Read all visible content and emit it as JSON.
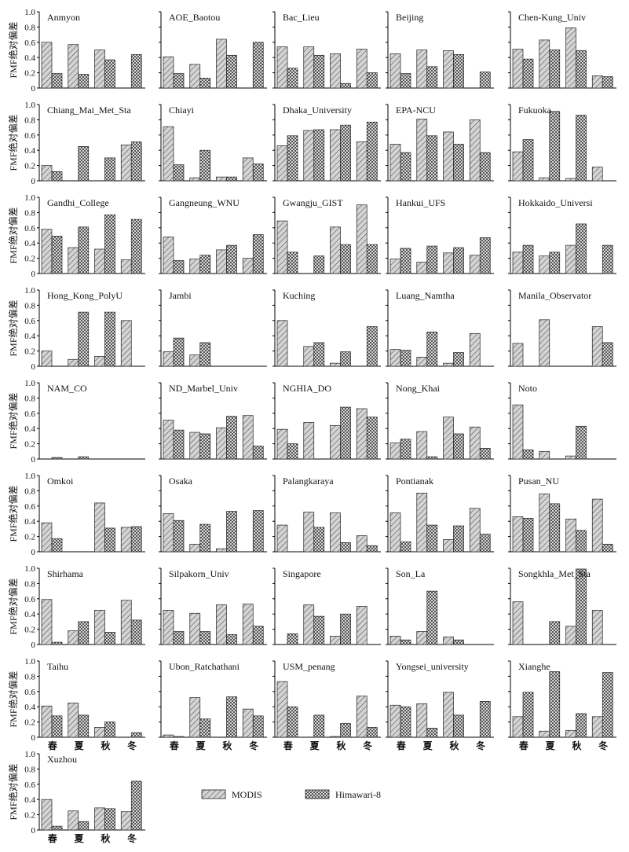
{
  "chart_data": {
    "type": "bar",
    "ylabel": "FMF绝对偏差",
    "categories": [
      "春",
      "夏",
      "秋",
      "冬"
    ],
    "ylim": [
      0,
      1.0
    ],
    "yticks": [
      "0",
      "0.2",
      "0.4",
      "0.6",
      "0.8",
      "1.0"
    ],
    "legend": [
      {
        "name": "MODIS",
        "pattern": "diagonal-lines"
      },
      {
        "name": "Himawari-8",
        "pattern": "crosshatch"
      }
    ],
    "panels": [
      {
        "site": "Anmyon",
        "series": [
          {
            "name": "MODIS",
            "values": [
              0.6,
              0.57,
              0.5,
              0.0
            ]
          },
          {
            "name": "Himawari-8",
            "values": [
              0.19,
              0.18,
              0.37,
              0.44
            ]
          }
        ]
      },
      {
        "site": "AOE_Baotou",
        "series": [
          {
            "name": "MODIS",
            "values": [
              0.41,
              0.31,
              0.64,
              0.0
            ]
          },
          {
            "name": "Himawari-8",
            "values": [
              0.19,
              0.13,
              0.43,
              0.6
            ]
          }
        ]
      },
      {
        "site": "Bac_Lieu",
        "series": [
          {
            "name": "MODIS",
            "values": [
              0.54,
              0.54,
              0.45,
              0.51
            ]
          },
          {
            "name": "Himawari-8",
            "values": [
              0.26,
              0.43,
              0.06,
              0.2
            ]
          }
        ]
      },
      {
        "site": "Beijing",
        "series": [
          {
            "name": "MODIS",
            "values": [
              0.45,
              0.5,
              0.49,
              0.0
            ]
          },
          {
            "name": "Himawari-8",
            "values": [
              0.19,
              0.28,
              0.44,
              0.21
            ]
          }
        ]
      },
      {
        "site": "Chen-Kung_Univ",
        "series": [
          {
            "name": "MODIS",
            "values": [
              0.51,
              0.63,
              0.79,
              0.16
            ]
          },
          {
            "name": "Himawari-8",
            "values": [
              0.38,
              0.5,
              0.49,
              0.15
            ]
          }
        ]
      },
      {
        "site": "Chiang_Mai_Met_Sta",
        "series": [
          {
            "name": "MODIS",
            "values": [
              0.2,
              0.0,
              0.0,
              0.47
            ]
          },
          {
            "name": "Himawari-8",
            "values": [
              0.12,
              0.45,
              0.3,
              0.51
            ]
          }
        ]
      },
      {
        "site": "Chiayi",
        "series": [
          {
            "name": "MODIS",
            "values": [
              0.71,
              0.04,
              0.05,
              0.3
            ]
          },
          {
            "name": "Himawari-8",
            "values": [
              0.21,
              0.4,
              0.05,
              0.22
            ]
          }
        ]
      },
      {
        "site": "Dhaka_University",
        "series": [
          {
            "name": "MODIS",
            "values": [
              0.46,
              0.66,
              0.67,
              0.51
            ]
          },
          {
            "name": "Himawari-8",
            "values": [
              0.59,
              0.67,
              0.73,
              0.77
            ]
          }
        ]
      },
      {
        "site": "EPA-NCU",
        "series": [
          {
            "name": "MODIS",
            "values": [
              0.48,
              0.81,
              0.64,
              0.8
            ]
          },
          {
            "name": "Himawari-8",
            "values": [
              0.37,
              0.59,
              0.48,
              0.37
            ]
          }
        ]
      },
      {
        "site": "Fukuoka",
        "series": [
          {
            "name": "MODIS",
            "values": [
              0.38,
              0.04,
              0.03,
              0.18
            ]
          },
          {
            "name": "Himawari-8",
            "values": [
              0.54,
              0.91,
              0.86,
              0.0
            ]
          }
        ]
      },
      {
        "site": "Gandhi_College",
        "series": [
          {
            "name": "MODIS",
            "values": [
              0.58,
              0.34,
              0.32,
              0.18
            ]
          },
          {
            "name": "Himawari-8",
            "values": [
              0.49,
              0.61,
              0.77,
              0.71
            ]
          }
        ]
      },
      {
        "site": "Gangneung_WNU",
        "series": [
          {
            "name": "MODIS",
            "values": [
              0.48,
              0.19,
              0.31,
              0.2
            ]
          },
          {
            "name": "Himawari-8",
            "values": [
              0.17,
              0.24,
              0.37,
              0.51
            ]
          }
        ]
      },
      {
        "site": "Gwangju_GIST",
        "series": [
          {
            "name": "MODIS",
            "values": [
              0.69,
              0.0,
              0.61,
              0.9
            ]
          },
          {
            "name": "Himawari-8",
            "values": [
              0.28,
              0.23,
              0.38,
              0.38
            ]
          }
        ]
      },
      {
        "site": "Hankui_UFS",
        "series": [
          {
            "name": "MODIS",
            "values": [
              0.19,
              0.15,
              0.27,
              0.24
            ]
          },
          {
            "name": "Himawari-8",
            "values": [
              0.33,
              0.36,
              0.34,
              0.47
            ]
          }
        ]
      },
      {
        "site": "Hokkaido_Universi",
        "series": [
          {
            "name": "MODIS",
            "values": [
              0.28,
              0.23,
              0.37,
              0.0
            ]
          },
          {
            "name": "Himawari-8",
            "values": [
              0.37,
              0.28,
              0.65,
              0.37
            ]
          }
        ]
      },
      {
        "site": "Hong_Kong_PolyU",
        "series": [
          {
            "name": "MODIS",
            "values": [
              0.2,
              0.09,
              0.13,
              0.6
            ]
          },
          {
            "name": "Himawari-8",
            "values": [
              0.0,
              0.71,
              0.71,
              0.0
            ]
          }
        ]
      },
      {
        "site": "Jambi",
        "series": [
          {
            "name": "MODIS",
            "values": [
              0.19,
              0.15,
              0.0,
              0.0
            ]
          },
          {
            "name": "Himawari-8",
            "values": [
              0.37,
              0.31,
              0.0,
              0.0
            ]
          }
        ]
      },
      {
        "site": "Kuching",
        "series": [
          {
            "name": "MODIS",
            "values": [
              0.6,
              0.26,
              0.04,
              0.0
            ]
          },
          {
            "name": "Himawari-8",
            "values": [
              0.0,
              0.31,
              0.19,
              0.52
            ]
          }
        ]
      },
      {
        "site": "Luang_Namtha",
        "series": [
          {
            "name": "MODIS",
            "values": [
              0.22,
              0.12,
              0.04,
              0.43
            ]
          },
          {
            "name": "Himawari-8",
            "values": [
              0.21,
              0.45,
              0.18,
              0.0
            ]
          }
        ]
      },
      {
        "site": "Manila_Observator",
        "series": [
          {
            "name": "MODIS",
            "values": [
              0.3,
              0.61,
              0.0,
              0.52
            ]
          },
          {
            "name": "Himawari-8",
            "values": [
              0.0,
              0.0,
              0.0,
              0.31
            ]
          }
        ]
      },
      {
        "site": "NAM_CO",
        "series": [
          {
            "name": "MODIS",
            "values": [
              0.0,
              0.0,
              0.0,
              0.0
            ]
          },
          {
            "name": "Himawari-8",
            "values": [
              0.02,
              0.03,
              0.0,
              0.0
            ]
          }
        ]
      },
      {
        "site": "ND_Marbel_Univ",
        "series": [
          {
            "name": "MODIS",
            "values": [
              0.51,
              0.35,
              0.41,
              0.57
            ]
          },
          {
            "name": "Himawari-8",
            "values": [
              0.38,
              0.33,
              0.56,
              0.17
            ]
          }
        ]
      },
      {
        "site": "NGHIA_DO",
        "series": [
          {
            "name": "MODIS",
            "values": [
              0.39,
              0.48,
              0.44,
              0.66
            ]
          },
          {
            "name": "Himawari-8",
            "values": [
              0.2,
              0.0,
              0.68,
              0.55
            ]
          }
        ]
      },
      {
        "site": "Nong_Khai",
        "series": [
          {
            "name": "MODIS",
            "values": [
              0.21,
              0.36,
              0.55,
              0.42
            ]
          },
          {
            "name": "Himawari-8",
            "values": [
              0.26,
              0.03,
              0.33,
              0.14
            ]
          }
        ]
      },
      {
        "site": "Noto",
        "series": [
          {
            "name": "MODIS",
            "values": [
              0.71,
              0.1,
              0.04,
              0.0
            ]
          },
          {
            "name": "Himawari-8",
            "values": [
              0.12,
              0.0,
              0.43,
              0.0
            ]
          }
        ]
      },
      {
        "site": "Omkoi",
        "series": [
          {
            "name": "MODIS",
            "values": [
              0.38,
              0.0,
              0.64,
              0.32
            ]
          },
          {
            "name": "Himawari-8",
            "values": [
              0.17,
              0.0,
              0.31,
              0.33
            ]
          }
        ]
      },
      {
        "site": "Osaka",
        "series": [
          {
            "name": "MODIS",
            "values": [
              0.5,
              0.1,
              0.04,
              0.0
            ]
          },
          {
            "name": "Himawari-8",
            "values": [
              0.41,
              0.36,
              0.53,
              0.54
            ]
          }
        ]
      },
      {
        "site": "Palangkaraya",
        "series": [
          {
            "name": "MODIS",
            "values": [
              0.35,
              0.52,
              0.51,
              0.21
            ]
          },
          {
            "name": "Himawari-8",
            "values": [
              0.0,
              0.32,
              0.12,
              0.08
            ]
          }
        ]
      },
      {
        "site": "Pontianak",
        "series": [
          {
            "name": "MODIS",
            "values": [
              0.51,
              0.77,
              0.16,
              0.57
            ]
          },
          {
            "name": "Himawari-8",
            "values": [
              0.13,
              0.35,
              0.34,
              0.23
            ]
          }
        ]
      },
      {
        "site": "Pusan_NU",
        "series": [
          {
            "name": "MODIS",
            "values": [
              0.46,
              0.76,
              0.43,
              0.69
            ]
          },
          {
            "name": "Himawari-8",
            "values": [
              0.44,
              0.63,
              0.28,
              0.1
            ]
          }
        ]
      },
      {
        "site": "Shirhama",
        "series": [
          {
            "name": "MODIS",
            "values": [
              0.59,
              0.18,
              0.45,
              0.58
            ]
          },
          {
            "name": "Himawari-8",
            "values": [
              0.03,
              0.3,
              0.16,
              0.32
            ]
          }
        ]
      },
      {
        "site": "Silpakorn_Univ",
        "series": [
          {
            "name": "MODIS",
            "values": [
              0.45,
              0.41,
              0.52,
              0.53
            ]
          },
          {
            "name": "Himawari-8",
            "values": [
              0.17,
              0.17,
              0.13,
              0.24
            ]
          }
        ]
      },
      {
        "site": "Singapore",
        "series": [
          {
            "name": "MODIS",
            "values": [
              0.0,
              0.52,
              0.11,
              0.5
            ]
          },
          {
            "name": "Himawari-8",
            "values": [
              0.14,
              0.37,
              0.4,
              0.0
            ]
          }
        ]
      },
      {
        "site": "Son_La",
        "series": [
          {
            "name": "MODIS",
            "values": [
              0.11,
              0.17,
              0.1,
              0.0
            ]
          },
          {
            "name": "Himawari-8",
            "values": [
              0.06,
              0.7,
              0.06,
              0.0
            ]
          }
        ]
      },
      {
        "site": "Songkhla_Met_Sta",
        "series": [
          {
            "name": "MODIS",
            "values": [
              0.56,
              0.0,
              0.24,
              0.45
            ]
          },
          {
            "name": "Himawari-8",
            "values": [
              0.0,
              0.3,
              0.99,
              0.0
            ]
          }
        ]
      },
      {
        "site": "Taihu",
        "series": [
          {
            "name": "MODIS",
            "values": [
              0.41,
              0.45,
              0.13,
              0.0
            ]
          },
          {
            "name": "Himawari-8",
            "values": [
              0.28,
              0.29,
              0.2,
              0.06
            ]
          }
        ]
      },
      {
        "site": "Ubon_Ratchathani",
        "series": [
          {
            "name": "MODIS",
            "values": [
              0.03,
              0.52,
              0.0,
              0.37
            ]
          },
          {
            "name": "Himawari-8",
            "values": [
              0.01,
              0.24,
              0.53,
              0.28
            ]
          }
        ]
      },
      {
        "site": "USM_penang",
        "series": [
          {
            "name": "MODIS",
            "values": [
              0.73,
              0.0,
              0.01,
              0.54
            ]
          },
          {
            "name": "Himawari-8",
            "values": [
              0.4,
              0.29,
              0.18,
              0.13
            ]
          }
        ]
      },
      {
        "site": "Yongsei_university",
        "series": [
          {
            "name": "MODIS",
            "values": [
              0.42,
              0.44,
              0.59,
              0.0
            ]
          },
          {
            "name": "Himawari-8",
            "values": [
              0.4,
              0.12,
              0.29,
              0.47
            ]
          }
        ]
      },
      {
        "site": "Xianghe",
        "series": [
          {
            "name": "MODIS",
            "values": [
              0.27,
              0.08,
              0.09,
              0.27
            ]
          },
          {
            "name": "Himawari-8",
            "values": [
              0.59,
              0.86,
              0.31,
              0.85
            ]
          }
        ]
      },
      {
        "site": "Xuzhou",
        "series": [
          {
            "name": "MODIS",
            "values": [
              0.4,
              0.25,
              0.29,
              0.24
            ]
          },
          {
            "name": "Himawari-8",
            "values": [
              0.05,
              0.11,
              0.28,
              0.64
            ]
          }
        ]
      }
    ]
  }
}
